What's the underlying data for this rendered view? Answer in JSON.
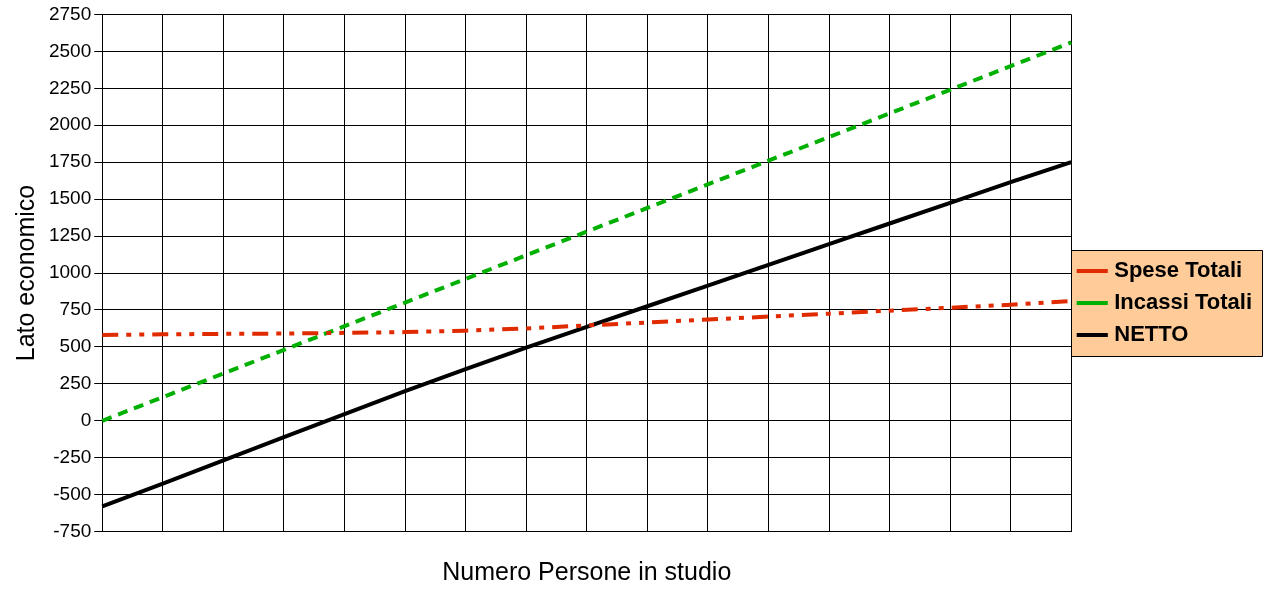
{
  "chart_data": {
    "type": "line",
    "xlabel": "Numero Persone in studio",
    "ylabel": "Lato economico",
    "categories": [
      null,
      null,
      null,
      null,
      null,
      null,
      null,
      null,
      null,
      null,
      null,
      null,
      null,
      null,
      null,
      null,
      null
    ],
    "series": [
      {
        "name": "Spese Totali",
        "color": "#e02a00",
        "line_style": "dotted",
        "values": [
          580,
          585,
          588,
          590,
          595,
          600,
          610,
          625,
          645,
          665,
          685,
          705,
          725,
          745,
          765,
          785,
          810
        ]
      },
      {
        "name": "Incassi Totali",
        "color": "#00b000",
        "line_style": "dashed",
        "values": [
          0,
          160,
          320,
          480,
          640,
          800,
          960,
          1120,
          1280,
          1440,
          1600,
          1760,
          1920,
          2080,
          2240,
          2400,
          2560
        ]
      },
      {
        "name": "NETTO",
        "color": "#000000",
        "line_style": "solid",
        "values": [
          -580,
          -425,
          -268,
          -110,
          45,
          200,
          350,
          495,
          635,
          775,
          915,
          1055,
          1195,
          1335,
          1475,
          1615,
          1750
        ]
      }
    ],
    "ylim": [
      -750,
      2750
    ],
    "yticks": [
      -750,
      -500,
      -250,
      0,
      250,
      500,
      750,
      1000,
      1250,
      1500,
      1750,
      2000,
      2250,
      2500,
      2750
    ],
    "grid": true,
    "legend": "right",
    "marker": "none"
  }
}
